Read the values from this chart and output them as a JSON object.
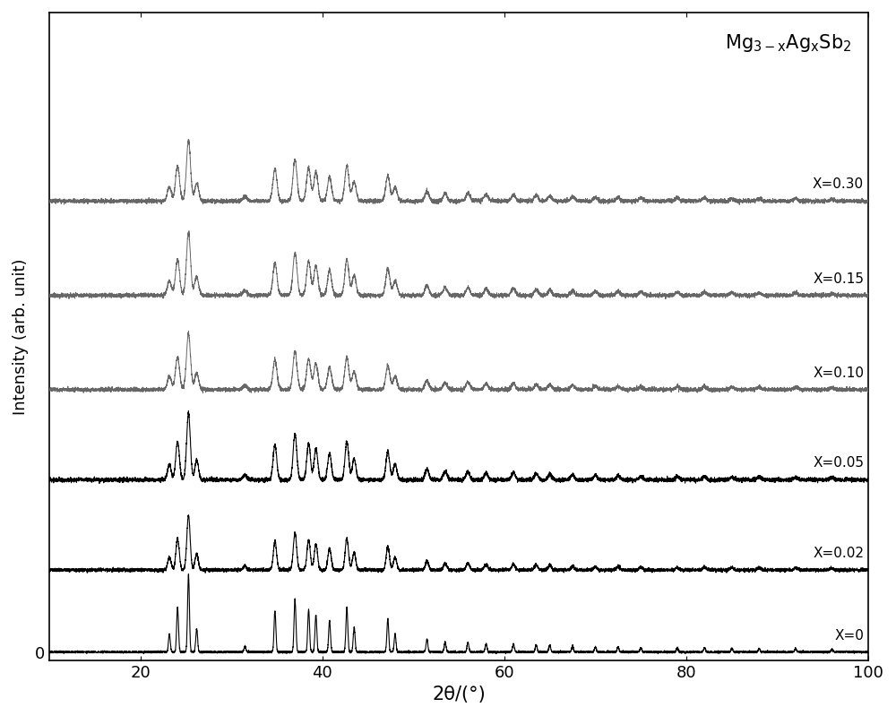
{
  "xlabel": "2θ/(°)",
  "ylabel": "Intensity (arb. unit)",
  "xlim": [
    10,
    100
  ],
  "ylim": [
    -0.1,
    7.8
  ],
  "xticks": [
    20,
    40,
    60,
    80,
    100
  ],
  "series_labels": [
    "X=0",
    "X=0.02",
    "X=0.05",
    "X=0.10",
    "X=0.15",
    "X=0.30"
  ],
  "offsets": [
    0.0,
    1.0,
    2.1,
    3.2,
    4.35,
    5.5
  ],
  "colors": [
    "#000000",
    "#000000",
    "#000000",
    "#666666",
    "#666666",
    "#666666"
  ],
  "peak_positions": [
    23.2,
    24.1,
    25.3,
    26.2,
    31.5,
    34.8,
    37.0,
    38.5,
    39.3,
    40.8,
    42.7,
    43.5,
    47.2,
    48.0,
    51.5,
    53.5,
    56.0,
    58.0,
    61.0,
    63.5,
    65.0,
    67.5,
    70.0,
    72.5,
    75.0,
    79.0,
    82.0,
    85.0,
    88.0,
    92.0,
    96.0
  ],
  "peak_heights": [
    0.22,
    0.55,
    0.95,
    0.28,
    0.07,
    0.5,
    0.65,
    0.52,
    0.45,
    0.38,
    0.55,
    0.3,
    0.4,
    0.22,
    0.15,
    0.12,
    0.12,
    0.1,
    0.1,
    0.09,
    0.08,
    0.07,
    0.06,
    0.06,
    0.05,
    0.05,
    0.05,
    0.04,
    0.04,
    0.04,
    0.03
  ],
  "background_color": "#ffffff"
}
